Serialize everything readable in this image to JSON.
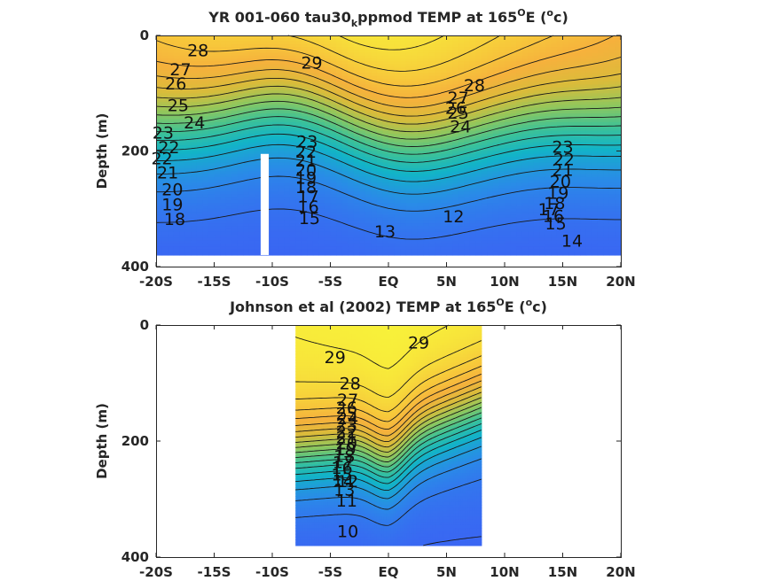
{
  "chart_data": [
    {
      "type": "heatmap",
      "title_main": "YR 001-060 tau30",
      "title_sub": "k",
      "title_rest": "ppmod TEMP at 165",
      "title_deg": "O",
      "title_end": "E (",
      "title_unit_sup": "o",
      "title_unit": "c)",
      "ylabel": "Depth (m)",
      "xlim": [
        -20,
        20
      ],
      "ylim": [
        400,
        0
      ],
      "xticks": [
        -20,
        -15,
        -10,
        -5,
        0,
        5,
        10,
        15,
        20
      ],
      "xticklabels": [
        "-20S",
        "-15S",
        "-10S",
        "-5S",
        "EQ",
        "5N",
        "10N",
        "15N",
        "20N"
      ],
      "yticks": [
        0,
        200,
        400
      ],
      "yticklabels": [
        "0",
        "200",
        "400"
      ],
      "data_xrange": [
        -20,
        20
      ],
      "data_depth_max": 380,
      "gap_lat": [
        -11,
        -10.3
      ],
      "gap_depth_top": 205,
      "colorscale": [
        "#3d5ff5",
        "#2a8ae8",
        "#12b4c7",
        "#3fc295",
        "#8ec75e",
        "#d8bc3b",
        "#f6b13c",
        "#f7d23b",
        "#f8f53a"
      ],
      "temp_range": [
        11,
        29.5
      ],
      "contour_levels": [
        12,
        13,
        14,
        15,
        16,
        17,
        18,
        19,
        20,
        21,
        22,
        23,
        24,
        25,
        26,
        27,
        28,
        29
      ],
      "contour_labels": [
        {
          "text": "28",
          "lat": -16.4,
          "depth": 25
        },
        {
          "text": "29",
          "lat": -6.6,
          "depth": 47
        },
        {
          "text": "27",
          "lat": -17.9,
          "depth": 58
        },
        {
          "text": "26",
          "lat": -18.3,
          "depth": 83
        },
        {
          "text": "25",
          "lat": -18.1,
          "depth": 120
        },
        {
          "text": "24",
          "lat": -16.7,
          "depth": 150
        },
        {
          "text": "23",
          "lat": -19.4,
          "depth": 168
        },
        {
          "text": "22",
          "lat": -18.9,
          "depth": 193
        },
        {
          "text": "22",
          "lat": -19.5,
          "depth": 212
        },
        {
          "text": "21",
          "lat": -19.0,
          "depth": 237
        },
        {
          "text": "20",
          "lat": -18.6,
          "depth": 266
        },
        {
          "text": "19",
          "lat": -18.6,
          "depth": 292
        },
        {
          "text": "18",
          "lat": -18.4,
          "depth": 317
        },
        {
          "text": "23",
          "lat": -7.0,
          "depth": 183
        },
        {
          "text": "22",
          "lat": -7.1,
          "depth": 201
        },
        {
          "text": "21",
          "lat": -7.1,
          "depth": 216
        },
        {
          "text": "20",
          "lat": -7.1,
          "depth": 232
        },
        {
          "text": "19",
          "lat": -7.1,
          "depth": 246
        },
        {
          "text": "18",
          "lat": -7.1,
          "depth": 262
        },
        {
          "text": "17",
          "lat": -6.9,
          "depth": 278
        },
        {
          "text": "16",
          "lat": -6.9,
          "depth": 296
        },
        {
          "text": "15",
          "lat": -6.8,
          "depth": 316
        },
        {
          "text": "13",
          "lat": -0.3,
          "depth": 339
        },
        {
          "text": "12",
          "lat": 5.6,
          "depth": 313
        },
        {
          "text": "28",
          "lat": 7.4,
          "depth": 86
        },
        {
          "text": "27",
          "lat": 6.0,
          "depth": 107
        },
        {
          "text": "26",
          "lat": 5.8,
          "depth": 125
        },
        {
          "text": "25",
          "lat": 6.0,
          "depth": 133
        },
        {
          "text": "24",
          "lat": 6.2,
          "depth": 157
        },
        {
          "text": "23",
          "lat": 15.0,
          "depth": 192
        },
        {
          "text": "22",
          "lat": 15.1,
          "depth": 214
        },
        {
          "text": "21",
          "lat": 15.0,
          "depth": 232
        },
        {
          "text": "20",
          "lat": 14.8,
          "depth": 252
        },
        {
          "text": "19",
          "lat": 14.6,
          "depth": 272
        },
        {
          "text": "18",
          "lat": 14.3,
          "depth": 290
        },
        {
          "text": "17",
          "lat": 13.8,
          "depth": 300
        },
        {
          "text": "16",
          "lat": 14.2,
          "depth": 312
        },
        {
          "text": "15",
          "lat": 14.4,
          "depth": 325
        },
        {
          "text": "14",
          "lat": 15.8,
          "depth": 355
        }
      ]
    },
    {
      "type": "heatmap",
      "title_main": "Johnson et al (2002) TEMP at 165",
      "title_deg": "O",
      "title_end": "E (",
      "title_unit_sup": "o",
      "title_unit": "c)",
      "ylabel": "Depth (m)",
      "xlim": [
        -20,
        20
      ],
      "ylim": [
        400,
        0
      ],
      "xticks": [
        -20,
        -15,
        -10,
        -5,
        0,
        5,
        10,
        15,
        20
      ],
      "xticklabels": [
        "-20S",
        "-15S",
        "-10S",
        "-5S",
        "EQ",
        "5N",
        "10N",
        "15N",
        "20N"
      ],
      "yticks": [
        0,
        200,
        400
      ],
      "yticklabels": [
        "0",
        "200",
        "400"
      ],
      "data_xrange": [
        -8,
        8
      ],
      "data_depth_max": 380,
      "colorscale": [
        "#3d5ff5",
        "#2a8ae8",
        "#12b4c7",
        "#3fc295",
        "#8ec75e",
        "#d8bc3b",
        "#f6b13c",
        "#f7d23b",
        "#f8f53a"
      ],
      "temp_range": [
        9.5,
        29.8
      ],
      "contour_levels": [
        10,
        11,
        12,
        13,
        14,
        15,
        16,
        17,
        18,
        19,
        20,
        21,
        22,
        23,
        24,
        25,
        26,
        27,
        28,
        29
      ],
      "contour_labels": [
        {
          "text": "29",
          "lat": -4.6,
          "depth": 55
        },
        {
          "text": "29",
          "lat": 2.6,
          "depth": 30
        },
        {
          "text": "28",
          "lat": -3.3,
          "depth": 100
        },
        {
          "text": "27",
          "lat": -3.5,
          "depth": 128
        },
        {
          "text": "26",
          "lat": -3.6,
          "depth": 142
        },
        {
          "text": "25",
          "lat": -3.6,
          "depth": 152
        },
        {
          "text": "24",
          "lat": -3.5,
          "depth": 160
        },
        {
          "text": "23",
          "lat": -3.6,
          "depth": 172
        },
        {
          "text": "22",
          "lat": -3.6,
          "depth": 183
        },
        {
          "text": "21",
          "lat": -3.6,
          "depth": 193
        },
        {
          "text": "20",
          "lat": -3.6,
          "depth": 203
        },
        {
          "text": "19",
          "lat": -3.7,
          "depth": 214
        },
        {
          "text": "18",
          "lat": -3.8,
          "depth": 225
        },
        {
          "text": "17",
          "lat": -3.9,
          "depth": 236
        },
        {
          "text": "16",
          "lat": -4.0,
          "depth": 246
        },
        {
          "text": "15",
          "lat": -4.0,
          "depth": 257
        },
        {
          "text": "14",
          "lat": -3.9,
          "depth": 268
        },
        {
          "text": "13",
          "lat": -3.8,
          "depth": 283
        },
        {
          "text": "12",
          "lat": -3.5,
          "depth": 269
        },
        {
          "text": "11",
          "lat": -3.6,
          "depth": 302
        },
        {
          "text": "10",
          "lat": -3.5,
          "depth": 355
        }
      ]
    }
  ]
}
